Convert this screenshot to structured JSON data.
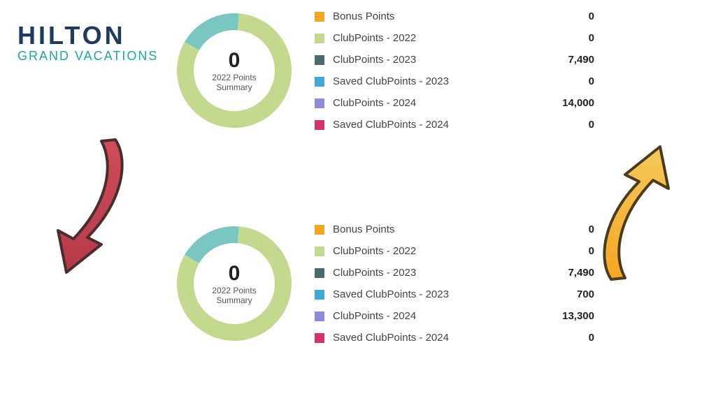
{
  "logo": {
    "main": "HILTON",
    "sub": "GRAND VACATIONS",
    "main_color": "#1e3a5f",
    "sub_color": "#1ba9a0"
  },
  "donut": {
    "ring_width": 24,
    "center_value": "0",
    "center_label": "2022 Points\nSummary",
    "segments": [
      {
        "color": "#7ac6c0",
        "fraction": 0.18
      },
      {
        "color": "#c2d98e",
        "fraction": 0.82
      }
    ]
  },
  "panel_top": {
    "items": [
      {
        "color": "#f5a623",
        "label": "Bonus Points",
        "value": "0"
      },
      {
        "color": "#c2d98e",
        "label": "ClubPoints - 2022",
        "value": "0"
      },
      {
        "color": "#4a6b6b",
        "label": "ClubPoints - 2023",
        "value": "7,490"
      },
      {
        "color": "#3fa9d8",
        "label": "Saved ClubPoints - 2023",
        "value": "0"
      },
      {
        "color": "#8c8cd9",
        "label": "ClubPoints - 2024",
        "value": "14,000"
      },
      {
        "color": "#d6336c",
        "label": "Saved ClubPoints - 2024",
        "value": "0"
      }
    ]
  },
  "panel_bottom": {
    "items": [
      {
        "color": "#f5a623",
        "label": "Bonus Points",
        "value": "0"
      },
      {
        "color": "#c2d98e",
        "label": "ClubPoints - 2022",
        "value": "0"
      },
      {
        "color": "#4a6b6b",
        "label": "ClubPoints - 2023",
        "value": "7,490"
      },
      {
        "color": "#3fa9d8",
        "label": "Saved ClubPoints - 2023",
        "value": "700"
      },
      {
        "color": "#8c8cd9",
        "label": "ClubPoints - 2024",
        "value": "13,300"
      },
      {
        "color": "#d6336c",
        "label": "Saved ClubPoints - 2024",
        "value": "0"
      }
    ]
  },
  "arrows": {
    "left": {
      "stroke": "#4a2e2e",
      "fill": "#d14d5b",
      "gradient_to": "#b53a48"
    },
    "right": {
      "stroke": "#4a3a1e",
      "fill": "#f5a623",
      "gradient_to": "#f5c85a"
    }
  }
}
